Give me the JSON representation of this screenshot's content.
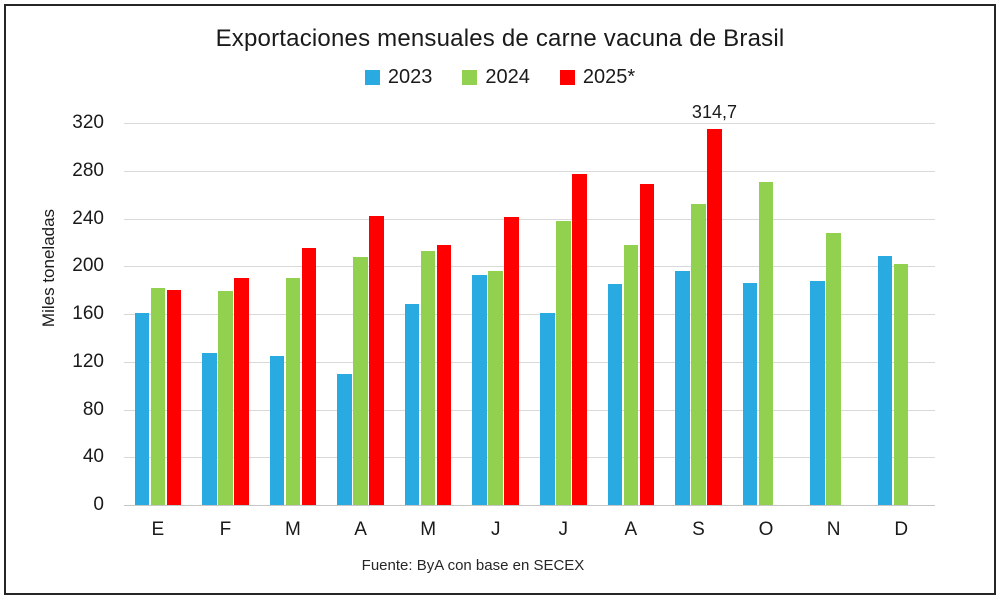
{
  "chart_data": {
    "type": "bar",
    "title": "Exportaciones mensuales de carne vacuna de Brasil",
    "ylabel": "Miles toneladas",
    "source": "Fuente: ByA con base en SECEX",
    "categories": [
      "E",
      "F",
      "M",
      "A",
      "M",
      "J",
      "J",
      "A",
      "S",
      "O",
      "N",
      "D"
    ],
    "yticks": [
      0,
      40,
      80,
      120,
      160,
      200,
      240,
      280,
      320
    ],
    "ylim": [
      0,
      320
    ],
    "grid": true,
    "legend_position": "top-center",
    "series": [
      {
        "name": "2023",
        "color": "#29ABE2",
        "values": [
          161,
          127,
          125,
          110,
          168,
          193,
          161,
          185,
          196,
          186,
          188,
          209
        ]
      },
      {
        "name": "2024",
        "color": "#92D050",
        "values": [
          182,
          179,
          190,
          208,
          213,
          196,
          238,
          218,
          252,
          271,
          228,
          202
        ]
      },
      {
        "name": "2025*",
        "color": "#FF0000",
        "values": [
          180,
          190,
          215,
          242,
          218,
          241,
          277,
          269,
          314.7,
          null,
          null,
          null
        ]
      }
    ],
    "annotations": [
      {
        "text": "314,7",
        "series_index": 2,
        "category_index": 8
      }
    ]
  },
  "colors": {
    "gridline": "#d9d9d9",
    "axis_line": "#c6c6c6",
    "text": "#1a1a1a",
    "frame_border": "#262626"
  }
}
